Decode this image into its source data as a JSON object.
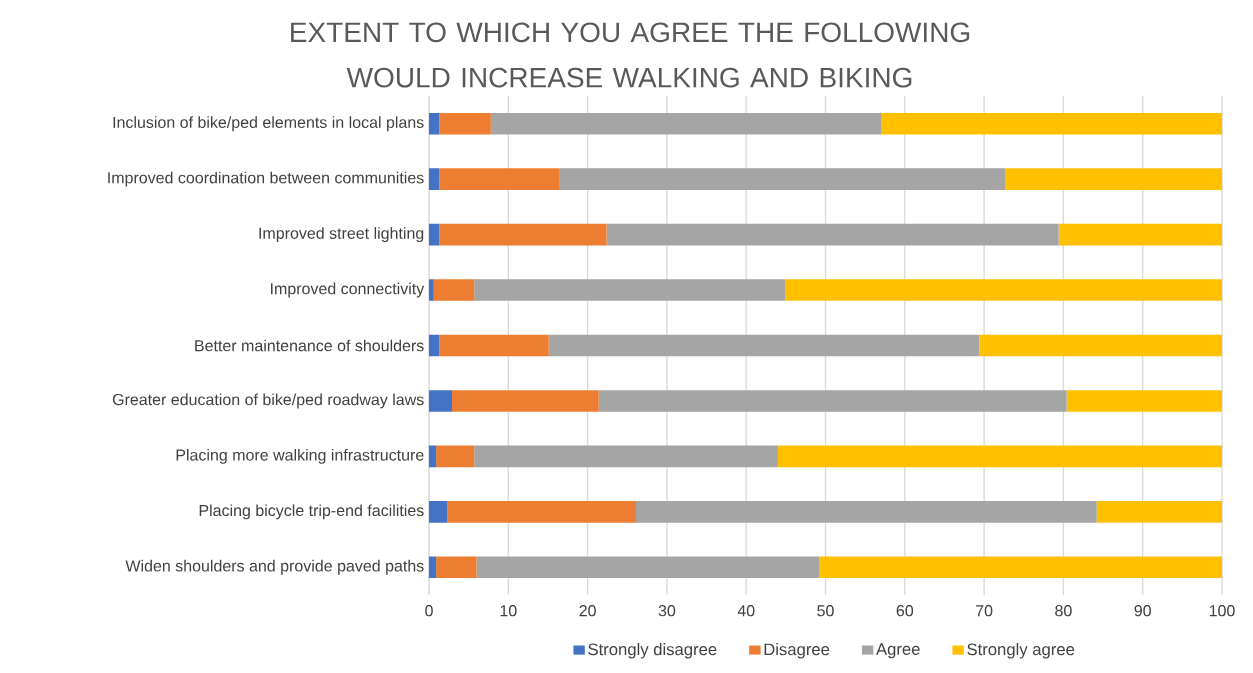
{
  "chart_data": {
    "type": "bar",
    "orientation": "horizontal",
    "stacked": true,
    "title": "EXTENT TO WHICH YOU AGREE THE FOLLOWING WOULD INCREASE WALKING AND BIKING",
    "categories": [
      "Inclusion of bike/ped elements in local plans",
      "Improved coordination between communities",
      "Improved street lighting",
      "Improved connectivity",
      "Better maintenance of shoulders",
      "Greater education of bike/ped roadway laws",
      "Placing more walking infrastructure",
      "Placing bicycle trip-end facilities",
      "Widen shoulders and provide paved paths"
    ],
    "series": [
      {
        "name": "Strongly disagree",
        "color": "#4472c4",
        "values": [
          1.3,
          1.3,
          1.3,
          0.6,
          1.3,
          2.9,
          0.9,
          2.3,
          0.9
        ]
      },
      {
        "name": "Disagree",
        "color": "#ed7d31",
        "values": [
          6.5,
          15.1,
          21.1,
          5.1,
          13.8,
          18.5,
          4.8,
          23.8,
          5.1
        ]
      },
      {
        "name": "Agree",
        "color": "#a5a5a5",
        "values": [
          49.2,
          56.3,
          57.0,
          39.2,
          54.3,
          59.0,
          38.3,
          58.1,
          43.2
        ]
      },
      {
        "name": "Strongly agree",
        "color": "#ffc000",
        "values": [
          43.0,
          27.3,
          20.6,
          55.1,
          30.6,
          19.6,
          56.0,
          15.8,
          50.8
        ]
      }
    ],
    "xlim": [
      0,
      100
    ],
    "xticks": [
      0,
      10,
      20,
      30,
      40,
      50,
      60,
      70,
      80,
      90,
      100
    ],
    "grid": "x",
    "legend": "bottom"
  }
}
